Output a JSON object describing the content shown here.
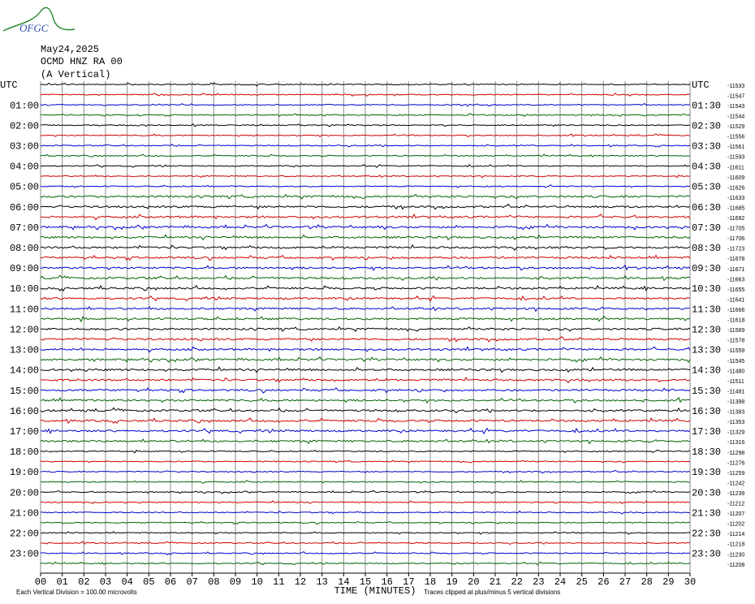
{
  "header": {
    "logo": "OFGC",
    "date": "May24,2025",
    "station": "OCMD HNZ RA 00",
    "component": "(A Vertical)"
  },
  "chart_data": {
    "type": "helicorder",
    "xlabel": "TIME (MINUTES)",
    "xlim": [
      0,
      30
    ],
    "xticks": [
      {
        "value": 0,
        "label": "00"
      },
      {
        "value": 1,
        "label": "01"
      },
      {
        "value": 2,
        "label": "02"
      },
      {
        "value": 3,
        "label": "03"
      },
      {
        "value": 4,
        "label": "04"
      },
      {
        "value": 5,
        "label": "05"
      },
      {
        "value": 6,
        "label": "06"
      },
      {
        "value": 7,
        "label": "07"
      },
      {
        "value": 8,
        "label": "08"
      },
      {
        "value": 9,
        "label": "09"
      },
      10,
      11,
      12,
      13,
      14,
      15,
      16,
      17,
      18,
      19,
      20,
      21,
      22,
      23,
      24,
      25,
      26,
      27,
      28,
      29,
      30
    ],
    "row_labels_left": [
      "UTC",
      "01:00",
      "02:00",
      "03:00",
      "04:00",
      "05:00",
      "06:00",
      "07:00",
      "08:00",
      "09:00",
      "10:00",
      "11:00",
      "12:00",
      "13:00",
      "14:00",
      "15:00",
      "16:00",
      "17:00",
      "18:00",
      "19:00",
      "20:00",
      "21:00",
      "22:00",
      "23:00"
    ],
    "row_labels_right": [
      "UTC",
      "01:30",
      "02:30",
      "03:30",
      "04:30",
      "05:30",
      "06:30",
      "07:30",
      "08:30",
      "09:30",
      "10:30",
      "11:30",
      "12:30",
      "13:30",
      "14:30",
      "15:30",
      "16:30",
      "17:30",
      "18:30",
      "19:30",
      "20:30",
      "21:30",
      "22:30",
      "23:30"
    ],
    "trace_offsets": [
      -11533,
      -11547,
      -11543,
      -11544,
      -11529,
      -11556,
      -11561,
      -11593,
      -11611,
      -11609,
      -11626,
      -11633,
      -11685,
      -11692,
      -11705,
      -11706,
      -11723,
      -11678,
      -11671,
      -11663,
      -11655,
      -11641,
      -11666,
      -11618,
      -11569,
      -11578,
      -11559,
      -11545,
      -11480,
      -11511,
      -11481,
      -11398,
      -11383,
      -11353,
      -11329,
      -11316,
      -11298,
      -11276,
      -11259,
      -11242,
      -11239,
      -11212,
      -11207,
      -11202,
      -11214,
      -11218,
      -11230,
      -11208
    ],
    "colors": [
      "#000000",
      "#d00000",
      "#0000d0",
      "#006400"
    ],
    "grid": true,
    "footnote_left": "Each Vertical Division =  100.00 microvolts",
    "footnote_right": "Traces clipped at plus/minus 5 vertical divisions"
  }
}
